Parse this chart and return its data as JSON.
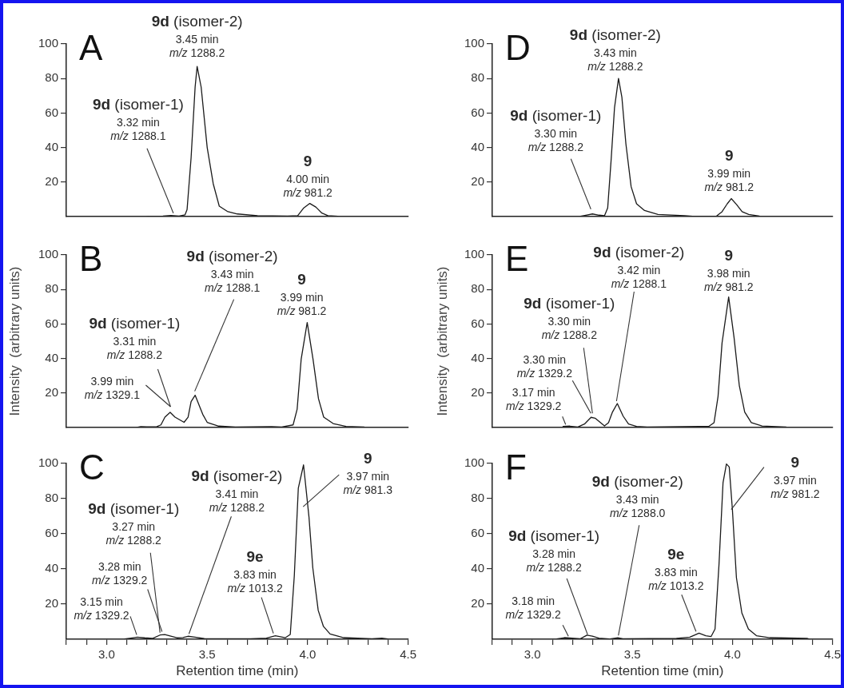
{
  "chart_data": [
    {
      "type": "line",
      "title": "A",
      "color": "#1a1a1a",
      "xlim": [
        2.8,
        4.5
      ],
      "ylim": [
        0,
        100
      ],
      "yticks": [
        20,
        40,
        60,
        80,
        100
      ],
      "grid": false,
      "tick_labels": "y",
      "x": [
        3.2,
        3.28,
        3.32,
        3.36,
        3.39,
        3.4,
        3.42,
        3.44,
        3.45,
        3.47,
        3.5,
        3.53,
        3.56,
        3.6,
        3.65,
        3.75,
        3.9,
        3.95,
        3.98,
        4.01,
        4.04,
        4.07,
        4.1,
        4.15
      ],
      "values": [
        0,
        0.3,
        0.6,
        0.3,
        1,
        4,
        34,
        75,
        87,
        75,
        40,
        19,
        6,
        3,
        1.5,
        0.5,
        0.3,
        0.5,
        5,
        7.6,
        5.5,
        2,
        0.5,
        0.2
      ],
      "annotations": [
        {
          "text": "9d (isomer-1)\n3.32 min\nm/z 1288.1",
          "x": 3.32,
          "y": 0.6
        },
        {
          "text": "9d (isomer-2)\n3.45 min\nm/z 1288.2",
          "x": 3.45,
          "y": 87
        },
        {
          "text": "9\n4.00 min\nm/z 981.2",
          "x": 4.0,
          "y": 7.6
        }
      ]
    },
    {
      "type": "line",
      "title": "B",
      "ylabel": "Intensity  (arbitrary units)",
      "color": "#1a1a1a",
      "xlim": [
        2.8,
        4.5
      ],
      "ylim": [
        0,
        100
      ],
      "yticks": [
        20,
        40,
        60,
        80,
        100
      ],
      "grid": false,
      "tick_labels": "y",
      "x": [
        3.15,
        3.17,
        3.2,
        3.25,
        3.27,
        3.29,
        3.316,
        3.34,
        3.385,
        3.405,
        3.42,
        3.44,
        3.478,
        3.5,
        3.557,
        3.64,
        3.82,
        3.87,
        3.927,
        3.947,
        3.967,
        3.997,
        4.026,
        4.053,
        4.079,
        4.126,
        4.19,
        4.28
      ],
      "values": [
        0,
        0.5,
        0.4,
        0.5,
        1.5,
        6,
        8.8,
        6,
        3,
        6,
        15,
        18.7,
        7.6,
        3,
        0.8,
        0.3,
        0.5,
        0.3,
        1.5,
        10.6,
        39.5,
        60.8,
        39.5,
        16.7,
        6,
        2.3,
        0.6,
        0.3
      ],
      "annotations": [
        {
          "text": "3.99 min\nm/z 1329.1",
          "x": 3.31,
          "y": 8.8
        },
        {
          "text": "9d (isomer-1)\n3.31 min\nm/z 1288.2",
          "x": 3.31,
          "y": 8.8
        },
        {
          "text": "9d (isomer-2)\n3.43 min\nm/z 1288.1",
          "x": 3.43,
          "y": 18.7
        },
        {
          "text": "9\n3.99 min\nm/z 981.2",
          "x": 3.99,
          "y": 60.8
        }
      ]
    },
    {
      "type": "line",
      "title": "C",
      "xlabel": "Retention time (min)",
      "color": "#1a1a1a",
      "xlim": [
        2.8,
        4.5
      ],
      "ylim": [
        0,
        100
      ],
      "yticks": [
        20,
        40,
        60,
        80,
        100
      ],
      "grid": false,
      "xticks": [
        {
          "value": 2.8,
          "label": null
        },
        {
          "value": 2.9,
          "label": null
        },
        {
          "value": 3.0,
          "label": "3.0"
        },
        {
          "value": 3.1,
          "label": null
        },
        {
          "value": 3.2,
          "label": null
        },
        {
          "value": 3.3,
          "label": null
        },
        {
          "value": 3.4,
          "label": null
        },
        {
          "value": 3.5,
          "label": "3.5"
        },
        {
          "value": 3.6,
          "label": null
        },
        {
          "value": 3.7,
          "label": null
        },
        {
          "value": 3.8,
          "label": null
        },
        {
          "value": 3.9,
          "label": null
        },
        {
          "value": 4.0,
          "label": "4.0"
        },
        {
          "value": 4.1,
          "label": null
        },
        {
          "value": 4.2,
          "label": null
        },
        {
          "value": 4.3,
          "label": null
        },
        {
          "value": 4.4,
          "label": null
        },
        {
          "value": 4.5,
          "label": "4.5"
        }
      ],
      "x": [
        3.09,
        3.134,
        3.153,
        3.19,
        3.23,
        3.266,
        3.29,
        3.32,
        3.35,
        3.38,
        3.405,
        3.44,
        3.49,
        3.716,
        3.795,
        3.84,
        3.89,
        3.914,
        3.934,
        3.954,
        3.98,
        4.007,
        4.026,
        4.053,
        4.079,
        4.112,
        4.18,
        4.32,
        4.37,
        4.4
      ],
      "values": [
        0.2,
        0.9,
        1.2,
        0.8,
        0.5,
        2.4,
        2.7,
        1.8,
        0.8,
        1,
        1.7,
        1.2,
        0.3,
        0.3,
        0.6,
        2,
        0.9,
        2.7,
        36,
        86,
        99.2,
        69.6,
        40.7,
        16.4,
        7.3,
        3,
        0.9,
        0.3,
        0.6,
        0.2
      ],
      "annotations": [
        {
          "text": "3.15 min\nm/z 1329.2",
          "x": 3.15,
          "y": 1.2
        },
        {
          "text": "3.28 min\nm/z 1329.2",
          "x": 3.28,
          "y": 2.5
        },
        {
          "text": "9d (isomer-1)\n3.27 min\nm/z 1288.2",
          "x": 3.27,
          "y": 2.4
        },
        {
          "text": "9d (isomer-2)\n3.41 min\nm/z 1288.2",
          "x": 3.41,
          "y": 1.7
        },
        {
          "text": "9e\n3.83 min\nm/z 1013.2",
          "x": 3.83,
          "y": 2
        },
        {
          "text": "9\n3.97 min\nm/z 981.3",
          "x": 3.97,
          "y": 99
        }
      ]
    },
    {
      "type": "line",
      "title": "D",
      "color": "#1a1a1a",
      "xlim": [
        2.8,
        4.5
      ],
      "ylim": [
        0,
        100
      ],
      "yticks": [
        20,
        40,
        60,
        80,
        100
      ],
      "grid": false,
      "tick_labels": "y",
      "x": [
        3.24,
        3.267,
        3.3,
        3.333,
        3.36,
        3.376,
        3.393,
        3.41,
        3.43,
        3.447,
        3.467,
        3.493,
        3.52,
        3.56,
        3.627,
        3.76,
        3.8,
        3.92,
        3.947,
        3.973,
        3.993,
        4.02,
        4.047,
        4.08,
        4.133
      ],
      "values": [
        0.2,
        0.8,
        1.5,
        0.8,
        0.5,
        5,
        32.6,
        63,
        80,
        69,
        42,
        17.3,
        7.4,
        3.5,
        1.2,
        0.5,
        0.2,
        0.3,
        2.8,
        7.4,
        10.4,
        6.9,
        2.8,
        1.2,
        0.3
      ],
      "annotations": [
        {
          "text": "9d (isomer-1)\n3.30 min\nm/z 1288.2",
          "x": 3.3,
          "y": 1.5
        },
        {
          "text": "9d (isomer-2)\n3.43 min\nm/z 1288.2",
          "x": 3.43,
          "y": 80
        },
        {
          "text": "9\n3.99 min\nm/z 981.2",
          "x": 3.99,
          "y": 10.4
        }
      ]
    },
    {
      "type": "line",
      "title": "E",
      "ylabel": "Intensity  (arbitrary units)",
      "color": "#1a1a1a",
      "xlim": [
        2.8,
        4.5
      ],
      "ylim": [
        0,
        100
      ],
      "yticks": [
        20,
        40,
        60,
        80,
        100
      ],
      "grid": false,
      "tick_labels": "y",
      "x": [
        3.153,
        3.187,
        3.227,
        3.26,
        3.293,
        3.313,
        3.36,
        3.38,
        3.4,
        3.424,
        3.453,
        3.48,
        3.52,
        3.573,
        3.833,
        3.88,
        3.907,
        3.927,
        3.947,
        3.98,
        4.007,
        4.033,
        4.06,
        4.093,
        4.147,
        4.267
      ],
      "values": [
        0.6,
        0.8,
        0.3,
        2,
        5.9,
        5.4,
        0.9,
        2.8,
        9,
        13.9,
        6.6,
        2,
        0.6,
        0.3,
        0.6,
        0.6,
        2.8,
        18,
        49,
        75.6,
        52,
        24.4,
        9,
        2.8,
        0.9,
        0.3
      ],
      "annotations": [
        {
          "text": "3.17 min\nm/z 1329.2",
          "x": 3.17,
          "y": 0.8
        },
        {
          "text": "3.30 min\nm/z 1329.2",
          "x": 3.3,
          "y": 5.9
        },
        {
          "text": "9d (isomer-1)\n3.30 min\nm/z 1288.2",
          "x": 3.3,
          "y": 5.9
        },
        {
          "text": "9d (isomer-2)\n3.42 min\nm/z 1288.1",
          "x": 3.42,
          "y": 13.9
        },
        {
          "text": "9\n3.98 min\nm/z 981.2",
          "x": 3.98,
          "y": 75.6
        }
      ]
    },
    {
      "type": "line",
      "title": "F",
      "xlabel": "Retention time (min)",
      "color": "#1a1a1a",
      "xlim": [
        2.8,
        4.5
      ],
      "ylim": [
        0,
        100
      ],
      "yticks": [
        20,
        40,
        60,
        80,
        100
      ],
      "grid": false,
      "xticks": [
        {
          "value": 2.8,
          "label": null
        },
        {
          "value": 2.9,
          "label": null
        },
        {
          "value": 3.0,
          "label": "3.0"
        },
        {
          "value": 3.1,
          "label": null
        },
        {
          "value": 3.2,
          "label": null
        },
        {
          "value": 3.3,
          "label": null
        },
        {
          "value": 3.4,
          "label": null
        },
        {
          "value": 3.5,
          "label": "3.5"
        },
        {
          "value": 3.6,
          "label": null
        },
        {
          "value": 3.7,
          "label": null
        },
        {
          "value": 3.8,
          "label": null
        },
        {
          "value": 3.9,
          "label": null
        },
        {
          "value": 4.0,
          "label": "4.0"
        },
        {
          "value": 4.1,
          "label": null
        },
        {
          "value": 4.2,
          "label": null
        },
        {
          "value": 4.3,
          "label": null
        },
        {
          "value": 4.4,
          "label": null
        },
        {
          "value": 4.5,
          "label": "4.5"
        }
      ],
      "x": [
        3.12,
        3.16,
        3.2,
        3.24,
        3.273,
        3.3,
        3.333,
        3.387,
        3.427,
        3.453,
        3.72,
        3.787,
        3.833,
        3.867,
        3.893,
        3.913,
        3.933,
        3.953,
        3.97,
        3.984,
        4.0,
        4.02,
        4.047,
        4.08,
        4.12,
        4.187,
        4.373,
        4.387
      ],
      "values": [
        0.2,
        0.9,
        0.6,
        0.3,
        2.3,
        1.8,
        0.6,
        0.2,
        0.8,
        0.3,
        0.5,
        1.2,
        3.5,
        2,
        1.5,
        5.8,
        42.8,
        89,
        99.7,
        98,
        73.5,
        35,
        15,
        5.8,
        2,
        0.9,
        0.5,
        0
      ],
      "annotations": [
        {
          "text": "3.18 min\nm/z 1329.2",
          "x": 3.18,
          "y": 0.8
        },
        {
          "text": "9d (isomer-1)\n3.28 min\nm/z 1288.2",
          "x": 3.28,
          "y": 2.3
        },
        {
          "text": "9d (isomer-2)\n3.43 min\nm/z 1288.0",
          "x": 3.43,
          "y": 0.8
        },
        {
          "text": "9e\n3.83 min\nm/z 1013.2",
          "x": 3.83,
          "y": 3.5
        },
        {
          "text": "9\n3.97 min\nm/z 981.2",
          "x": 3.97,
          "y": 99.7
        }
      ]
    }
  ]
}
